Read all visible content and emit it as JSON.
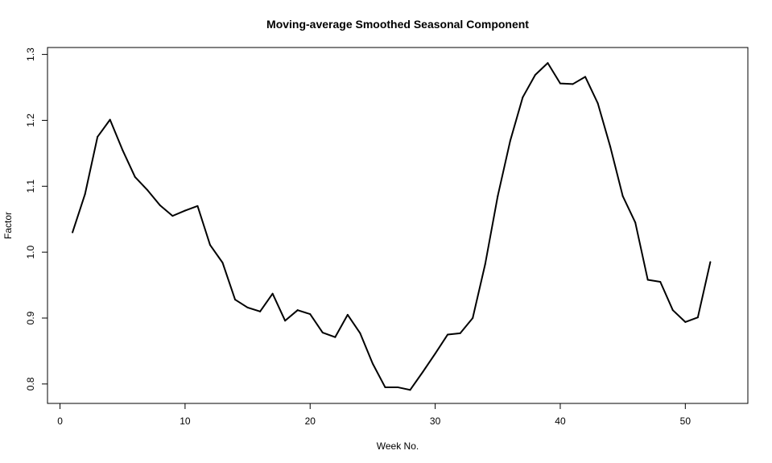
{
  "chart_data": {
    "type": "line",
    "title": "Moving-average Smoothed Seasonal Component",
    "xlabel": "Week No.",
    "ylabel": "Factor",
    "xlim": [
      -1,
      55
    ],
    "ylim": [
      0.7705,
      1.3105
    ],
    "xticks": [
      0,
      10,
      20,
      30,
      40,
      50
    ],
    "xtick_labels": [
      "0",
      "10",
      "20",
      "30",
      "40",
      "50"
    ],
    "yticks": [
      0.8,
      0.9,
      1.0,
      1.1,
      1.2,
      1.3
    ],
    "ytick_labels": [
      "0.8",
      "0.9",
      "1.0",
      "1.1",
      "1.2",
      "1.3"
    ],
    "grid": false,
    "line_color": "#000000",
    "x": [
      1,
      2,
      3,
      4,
      5,
      6,
      7,
      8,
      9,
      10,
      11,
      12,
      13,
      14,
      15,
      16,
      17,
      18,
      19,
      20,
      21,
      22,
      23,
      24,
      25,
      26,
      27,
      28,
      29,
      30,
      31,
      32,
      33,
      34,
      35,
      36,
      37,
      38,
      39,
      40,
      41,
      42,
      43,
      44,
      45,
      46,
      47,
      48,
      49,
      50,
      51,
      52
    ],
    "values": [
      1.03,
      1.088,
      1.175,
      1.201,
      1.155,
      1.114,
      1.094,
      1.071,
      1.055,
      1.063,
      1.07,
      1.011,
      0.984,
      0.928,
      0.916,
      0.91,
      0.937,
      0.896,
      0.912,
      0.906,
      0.878,
      0.871,
      0.905,
      0.877,
      0.831,
      0.795,
      0.795,
      0.791,
      0.818,
      0.846,
      0.875,
      0.877,
      0.9,
      0.982,
      1.085,
      1.169,
      1.235,
      1.269,
      1.287,
      1.256,
      1.255,
      1.266,
      1.226,
      1.16,
      1.085,
      1.045,
      0.958,
      0.955,
      0.912,
      0.894,
      0.901,
      0.985
    ]
  }
}
